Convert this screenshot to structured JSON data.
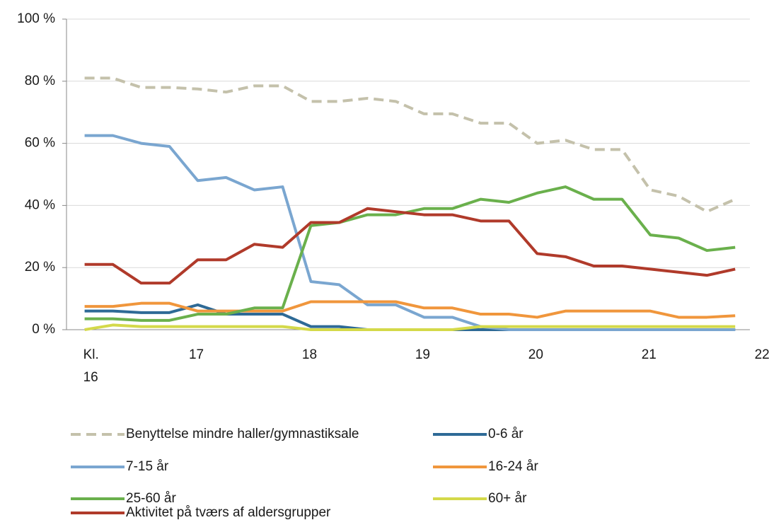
{
  "chart_data": {
    "type": "line",
    "x": [
      16,
      16.25,
      16.5,
      16.75,
      17,
      17.25,
      17.5,
      17.75,
      18,
      18.25,
      18.5,
      18.75,
      19,
      19.25,
      19.5,
      19.75,
      20,
      20.25,
      20.5,
      20.75,
      21,
      21.25,
      21.5,
      21.75
    ],
    "xlim": [
      15.84,
      21.88
    ],
    "xticks": [
      {
        "value": 16,
        "label": "Kl. 16"
      },
      17,
      18,
      19,
      20,
      21,
      22
    ],
    "ylim": [
      0,
      100
    ],
    "yticks": [
      {
        "value": 0,
        "label": "0 %"
      },
      {
        "value": 20,
        "label": "20 %"
      },
      {
        "value": 40,
        "label": "40 %"
      },
      {
        "value": 60,
        "label": "60 %"
      },
      {
        "value": 80,
        "label": "80 %"
      },
      {
        "value": 100,
        "label": "100 %"
      }
    ],
    "grid": true,
    "legend": "bottom",
    "series": [
      {
        "name": "Benyttelse mindre haller/gymnastiksale",
        "color": "#c4c1ab",
        "dashed": true,
        "values": [
          81,
          81,
          78,
          78,
          77.5,
          76.5,
          78.5,
          78.5,
          73.5,
          73.5,
          74.5,
          73.5,
          69.5,
          69.5,
          66.5,
          66.5,
          60,
          61,
          58,
          58,
          45,
          43,
          38,
          42
        ]
      },
      {
        "name": "0-6 år",
        "color": "#2e6a96",
        "values": [
          6,
          6,
          5.5,
          5.5,
          8,
          5,
          5,
          5,
          1,
          1,
          0,
          0,
          0,
          0,
          0,
          0,
          0,
          0,
          0,
          0,
          0,
          0,
          0,
          0
        ]
      },
      {
        "name": "7-15 år",
        "color": "#7aa6d0",
        "values": [
          62.5,
          62.5,
          60,
          59,
          48,
          49,
          45,
          46,
          15.5,
          14.5,
          8,
          8,
          4,
          4,
          1,
          0,
          0,
          0,
          0,
          0,
          0,
          0,
          0,
          0
        ]
      },
      {
        "name": "16-24 år",
        "color": "#f0963c",
        "values": [
          7.5,
          7.5,
          8.5,
          8.5,
          6,
          6,
          6,
          6,
          9,
          9,
          9,
          9,
          7,
          7,
          5,
          5,
          4,
          6,
          6,
          6,
          6,
          4,
          4,
          4.5
        ]
      },
      {
        "name": "25-60 år",
        "color": "#6ab04c",
        "values": [
          3.5,
          3.5,
          3,
          3,
          5,
          5,
          7,
          7,
          33.5,
          34.5,
          37,
          37,
          39,
          39,
          42,
          41,
          44,
          46,
          42,
          42,
          30.5,
          29.5,
          25.5,
          26.5
        ]
      },
      {
        "name": "60+ år",
        "color": "#d4d94a",
        "values": [
          0,
          1.5,
          1,
          1,
          1,
          1,
          1,
          1,
          0,
          0,
          0,
          0,
          0,
          0,
          1,
          1,
          1,
          1,
          1,
          1,
          1,
          1,
          1,
          1
        ]
      },
      {
        "name": "Aktivitet på tværs af aldersgrupper",
        "color": "#b03a2a",
        "values": [
          21,
          21,
          15,
          15,
          22.5,
          22.5,
          27.5,
          26.5,
          34.5,
          34.5,
          39,
          38,
          37,
          37,
          35,
          35,
          24.5,
          23.5,
          20.5,
          20.5,
          19.5,
          18.5,
          17.5,
          19.5
        ]
      }
    ]
  }
}
